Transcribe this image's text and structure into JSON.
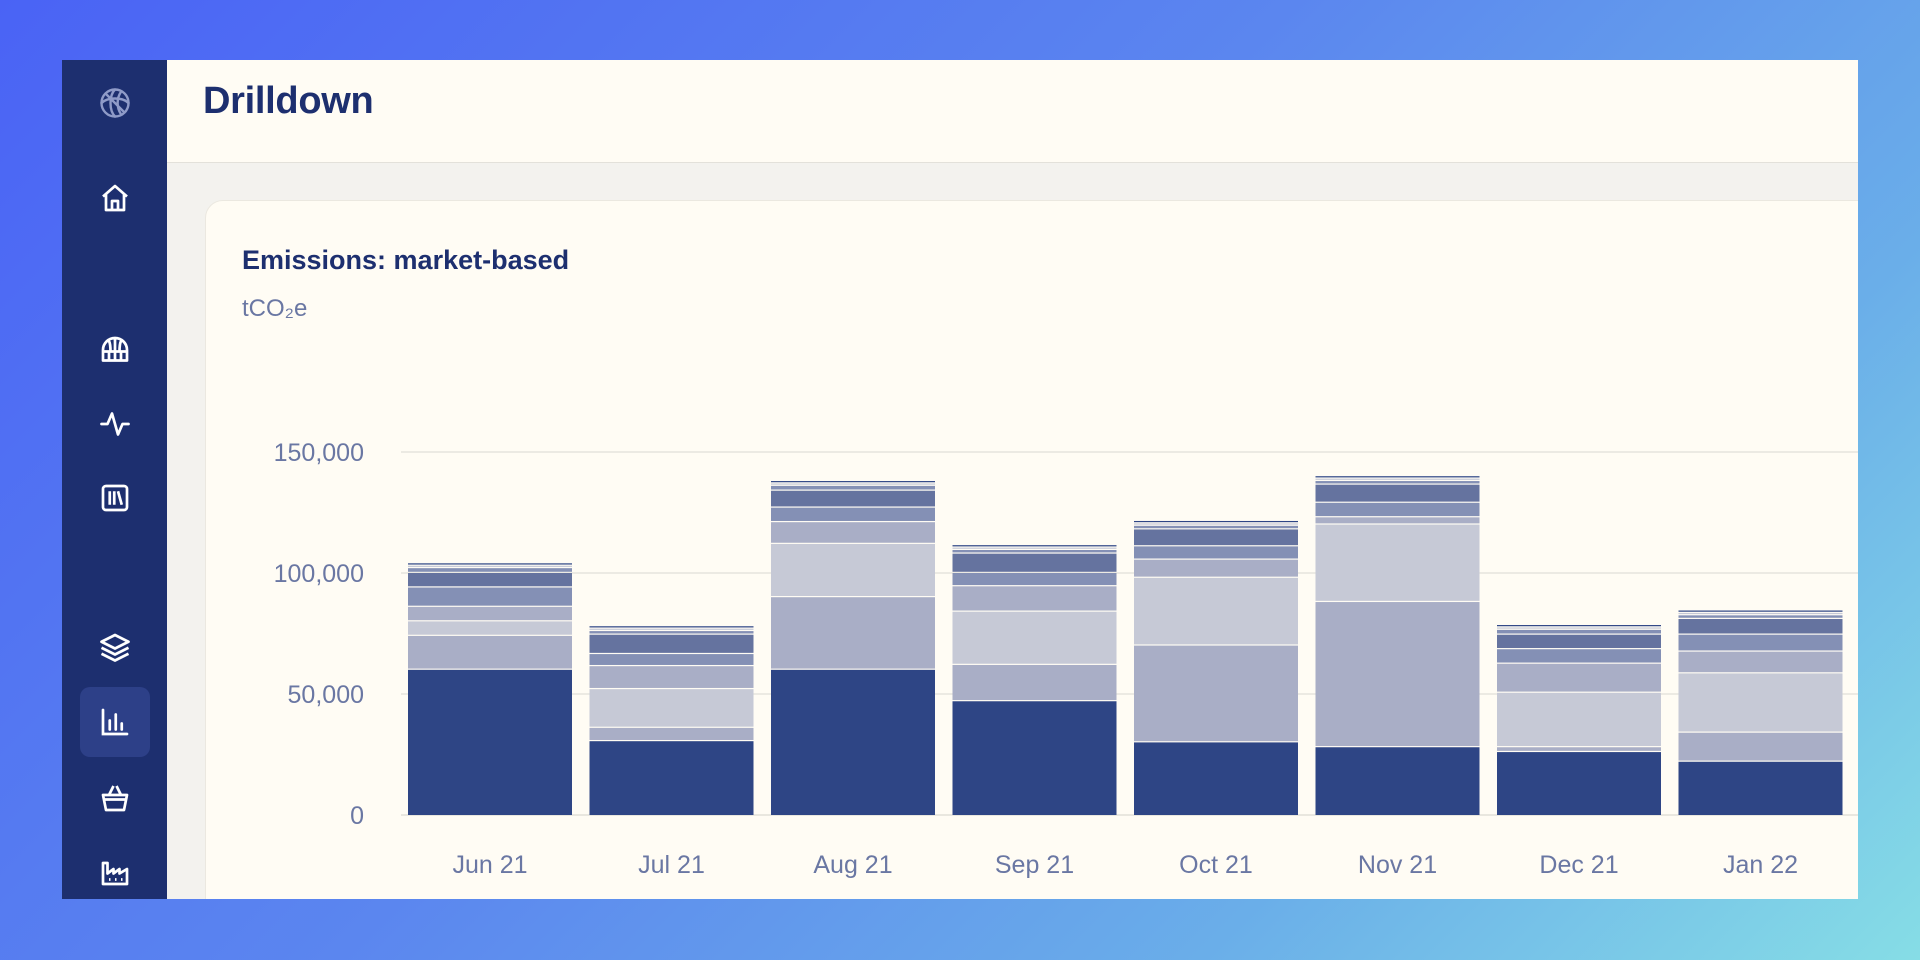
{
  "header": {
    "title": "Drilldown"
  },
  "sidebar": {
    "logo_icon": "globe-icon",
    "items": [
      {
        "name": "home",
        "icon": "home-icon",
        "active": false
      },
      {
        "name": "facilities",
        "icon": "dome-icon",
        "active": false
      },
      {
        "name": "activity",
        "icon": "activity-icon",
        "active": false
      },
      {
        "name": "library",
        "icon": "library-icon",
        "active": false
      },
      {
        "name": "layers",
        "icon": "layers-icon",
        "active": false
      },
      {
        "name": "drilldown",
        "icon": "bar-chart-icon",
        "active": true
      },
      {
        "name": "purchases",
        "icon": "basket-icon",
        "active": false
      },
      {
        "name": "factory",
        "icon": "factory-icon",
        "active": false
      }
    ]
  },
  "colors": {
    "sidebar": "#1d2f6f",
    "segments": [
      "#2e4585",
      "#a9aec6",
      "#c6c9d6",
      "#a9aec6",
      "#8490b5",
      "#65739f",
      "#8490b5",
      "#c6c9d6",
      "#2e4585"
    ]
  },
  "chart_data": {
    "type": "bar",
    "stacked": true,
    "title": "Emissions: market-based",
    "unit": "tCO₂e",
    "ylim": [
      0,
      150000
    ],
    "yticks": [
      0,
      50000,
      100000,
      150000
    ],
    "ytick_labels": [
      "0",
      "50,000",
      "100,000",
      "150,000"
    ],
    "categories": [
      "Jun 21",
      "Jul 21",
      "Aug 21",
      "Sep 21",
      "Oct 21",
      "Nov 21",
      "Dec 21",
      "Jan 22"
    ],
    "stacks": [
      [
        60000,
        14000,
        6000,
        6000,
        8000,
        6000,
        2000,
        1000,
        1000
      ],
      [
        30500,
        5500,
        16000,
        9500,
        5000,
        8000,
        1500,
        1000,
        1000
      ],
      [
        60000,
        30000,
        22000,
        9000,
        6000,
        7000,
        2000,
        1000,
        1000
      ],
      [
        47000,
        15000,
        22000,
        10500,
        5500,
        8000,
        1500,
        1000,
        1000
      ],
      [
        30000,
        40000,
        28000,
        7500,
        5500,
        7000,
        1500,
        1000,
        1000
      ],
      [
        28000,
        60000,
        32000,
        3000,
        6000,
        7500,
        1500,
        1000,
        1000
      ],
      [
        26000,
        2000,
        22500,
        12000,
        6000,
        6000,
        2000,
        1000,
        1000
      ],
      [
        22000,
        12000,
        24500,
        9000,
        7000,
        6500,
        1500,
        1000,
        1000
      ]
    ]
  }
}
